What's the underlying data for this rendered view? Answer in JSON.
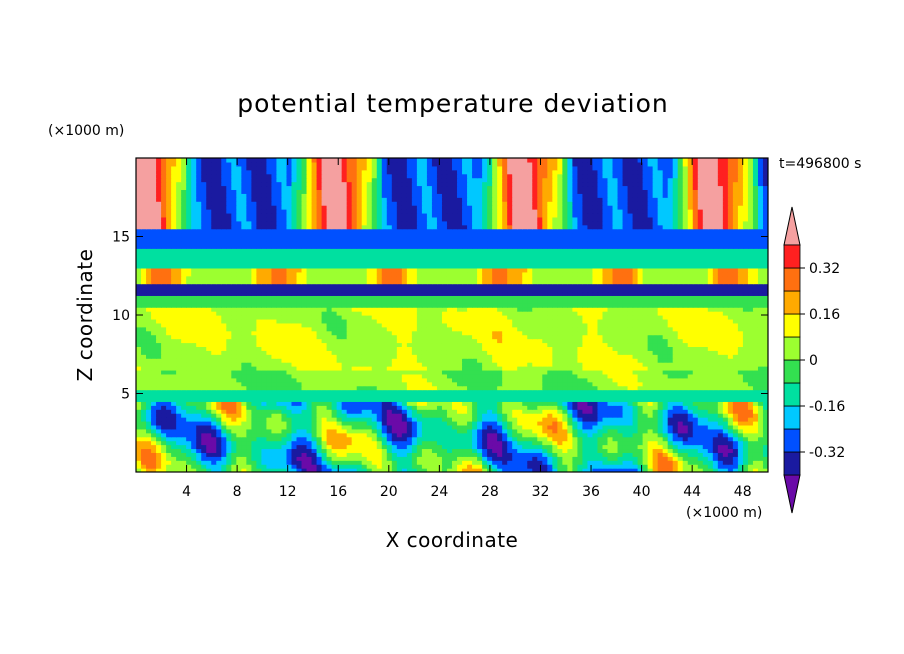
{
  "chart_data": {
    "type": "heatmap",
    "title": "potential temperature deviation",
    "xlabel": "X coordinate",
    "ylabel": "Z coordinate",
    "x_unit": "(×1000 m)",
    "y_unit": "(×1000 m)",
    "time_label": "t=496800 s",
    "xlim": [
      0,
      50
    ],
    "ylim": [
      0,
      20
    ],
    "x_ticks": [
      4,
      8,
      12,
      16,
      20,
      24,
      28,
      32,
      36,
      40,
      44,
      48
    ],
    "y_ticks": [
      5,
      10,
      15
    ],
    "colorbar": {
      "levels": [
        -0.4,
        -0.32,
        -0.24,
        -0.16,
        -0.08,
        0,
        0.08,
        0.16,
        0.24,
        0.32,
        0.4
      ],
      "colors": [
        "#6a0aa8",
        "#1a1aa0",
        "#0050ff",
        "#00c8ff",
        "#00e0a0",
        "#33e050",
        "#9cff30",
        "#ffff00",
        "#ffaa00",
        "#ff7010",
        "#ff2020",
        "#f5a0a0"
      ],
      "labels": [
        "0.32",
        "0.16",
        "0",
        "-0.16",
        "-0.32"
      ],
      "extend": "both"
    }
  }
}
